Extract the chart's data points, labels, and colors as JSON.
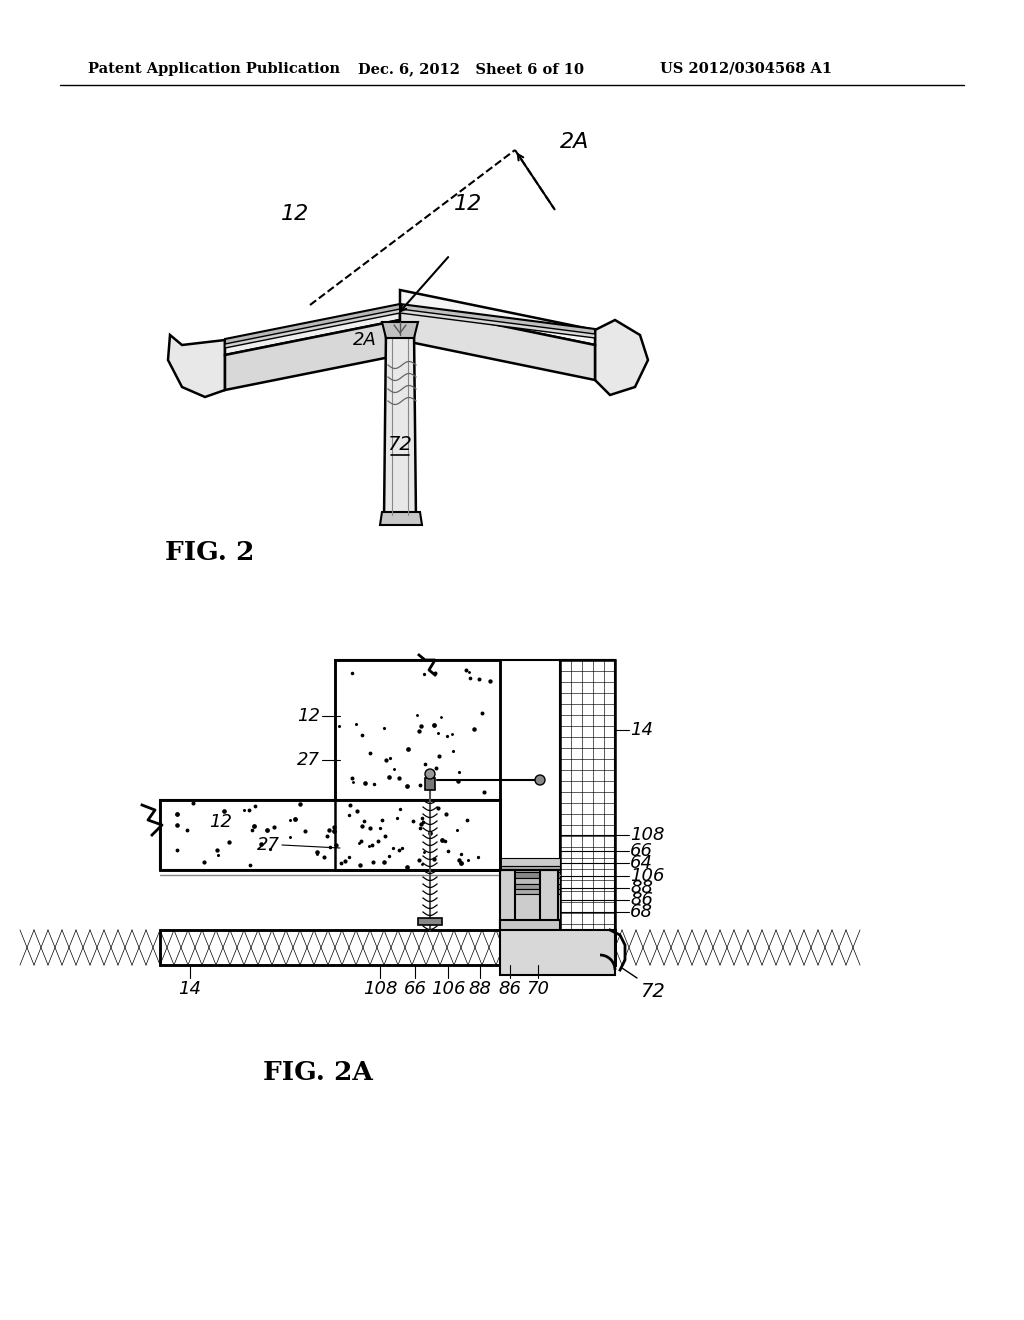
{
  "header_left": "Patent Application Publication",
  "header_mid": "Dec. 6, 2012   Sheet 6 of 10",
  "header_right": "US 2012/0304568 A1",
  "fig2_label": "FIG. 2",
  "fig2a_label": "FIG. 2A",
  "background_color": "#ffffff",
  "line_color": "#000000"
}
